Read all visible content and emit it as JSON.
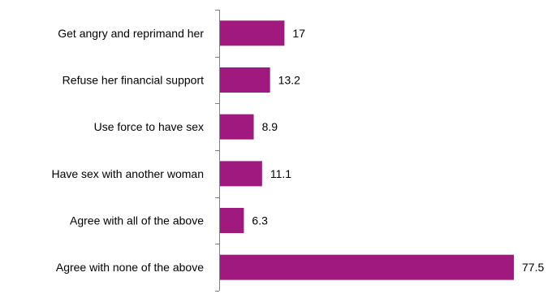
{
  "chart_data": {
    "type": "bar",
    "orientation": "horizontal",
    "categories": [
      "Get angry and reprimand her",
      "Refuse her financial support",
      "Use force to have sex",
      "Have sex with another woman",
      "Agree with all of the above",
      "Agree with none of the above"
    ],
    "values": [
      17,
      13.2,
      8.9,
      11.1,
      6.3,
      77.5
    ],
    "value_labels": [
      "17",
      "13.2",
      "8.9",
      "11.1",
      "6.3",
      "77.5"
    ],
    "xlim": [
      0,
      80
    ],
    "grid": false,
    "legend": "none",
    "bar_color": "#A0197F"
  }
}
